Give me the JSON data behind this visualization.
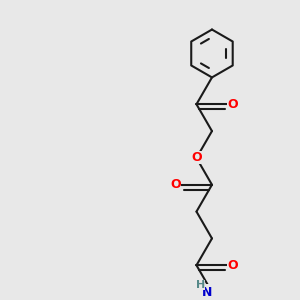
{
  "background_color": "#e8e8e8",
  "bond_color": "#1a1a1a",
  "oxygen_color": "#ff0000",
  "nitrogen_color": "#0000cc",
  "hydrogen_color": "#558888",
  "line_width": 1.5,
  "figsize": [
    3.0,
    3.0
  ],
  "dpi": 100,
  "xlim": [
    0,
    10
  ],
  "ylim": [
    0,
    10
  ]
}
